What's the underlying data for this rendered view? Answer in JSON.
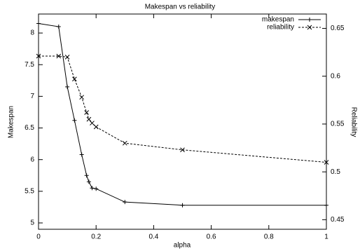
{
  "chart_data": {
    "type": "line",
    "title": "Makespan vs reliability",
    "xlabel": "alpha",
    "ylabel": "Makespan",
    "y2label": "Reliability",
    "x": [
      0,
      0.07,
      0.1,
      0.125,
      0.15,
      0.167,
      0.175,
      0.186,
      0.2,
      0.3,
      0.5,
      1
    ],
    "series": [
      {
        "name": "makespan",
        "color": "#000000",
        "marker": "plus",
        "dash": "solid",
        "values": [
          8.15,
          8.1,
          7.15,
          6.62,
          6.08,
          5.75,
          5.65,
          5.55,
          5.54,
          5.33,
          5.28,
          5.28
        ]
      },
      {
        "name": "reliability",
        "color": "#000000",
        "marker": "cross",
        "dash": "dashed",
        "axis": "y2",
        "values": [
          0.621,
          0.621,
          0.62,
          0.597,
          0.578,
          0.562,
          0.555,
          0.551,
          0.547,
          0.53,
          0.523,
          0.51
        ]
      }
    ],
    "xlim": [
      0,
      1
    ],
    "xticks": [
      0,
      0.2,
      0.4,
      0.6,
      0.8,
      1
    ],
    "ylim": [
      4.9,
      8.3
    ],
    "yticks": [
      5,
      5.5,
      6,
      6.5,
      7,
      7.5,
      8
    ],
    "y2lim": [
      0.44,
      0.665
    ],
    "y2ticks": [
      0.45,
      0.5,
      0.55,
      0.6,
      0.65
    ],
    "legend": "top-right",
    "grid": false
  }
}
